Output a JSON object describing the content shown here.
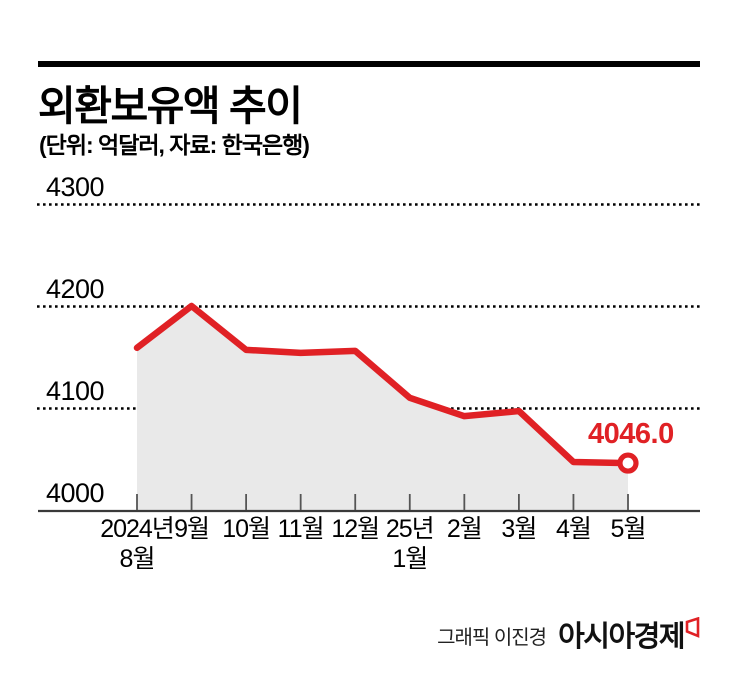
{
  "header": {
    "title": "외환보유액 추이",
    "subtitle": "(단위: 억달러, 자료: 한국은행)"
  },
  "chart_data": {
    "type": "line",
    "title": "외환보유액 추이",
    "unit_note": "(단위: 억달러, 자료: 한국은행)",
    "categories": [
      "2024년\n8월",
      "9월",
      "10월",
      "11월",
      "12월",
      "25년\n1월",
      "2월",
      "3월",
      "4월",
      "5월"
    ],
    "values": [
      4159,
      4200,
      4157,
      4154,
      4156,
      4110,
      4092,
      4097,
      4047,
      4046
    ],
    "yticks": [
      4000,
      4100,
      4200,
      4300
    ],
    "ylim": [
      4000,
      4300
    ],
    "xlabel": "",
    "ylabel": "",
    "legend": "none",
    "grid": "dotted-horizontal",
    "end_label": "4046.0",
    "marker": "open-circle-on-last-point"
  },
  "colors": {
    "line_red": "#e02125",
    "area_gray": "#e9e9e9",
    "grid_black": "#000000",
    "axis_dark": "#3a3a3a",
    "tick_gray": "#555555"
  },
  "footer": {
    "credit": "그래픽 이진경",
    "logo": "아시아경제",
    "logo_mark": "red-flag-icon"
  }
}
